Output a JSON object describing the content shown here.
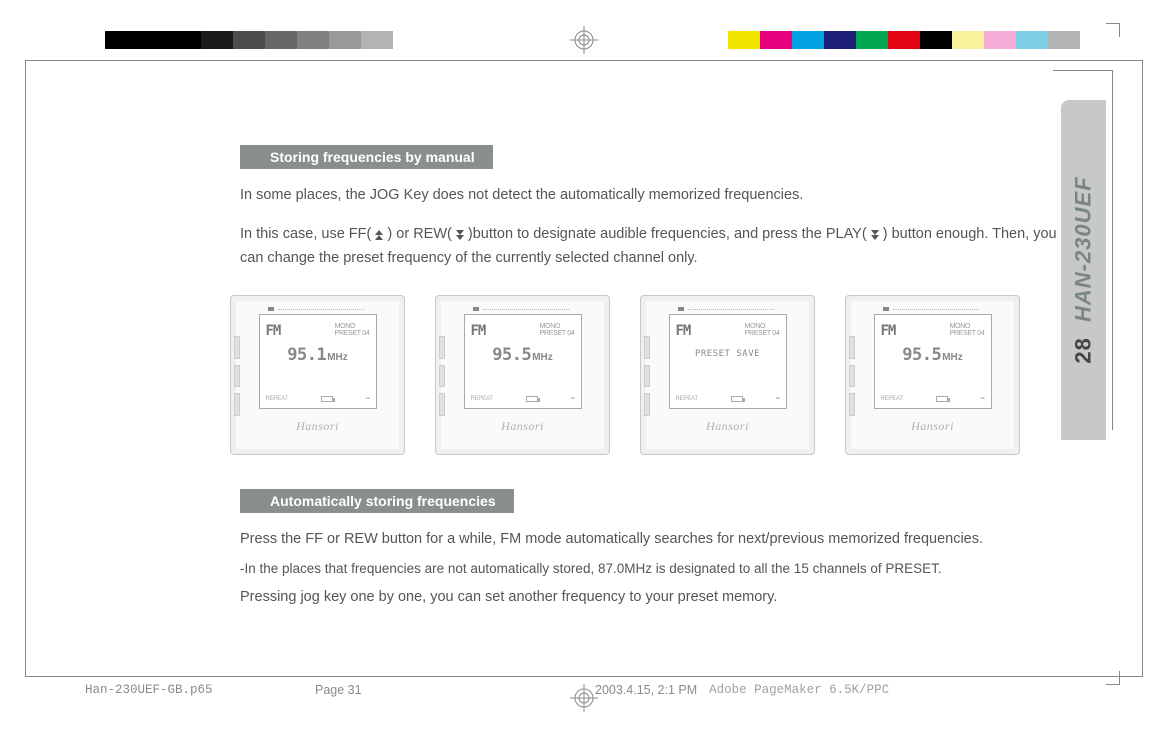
{
  "colorbar_left": [
    "#000000",
    "#000000",
    "#000000",
    "#1a1a1a",
    "#4d4d4d",
    "#666666",
    "#808080",
    "#999999",
    "#b3b3b3",
    "#ffffff"
  ],
  "colorbar_right": [
    "#f2e600",
    "#e6007e",
    "#00a0e1",
    "#1d1d7a",
    "#00a651",
    "#e30613",
    "#000000",
    "#f9f29b",
    "#f5aed8",
    "#7ecfe8",
    "#b3b3b3"
  ],
  "side_tab": {
    "page_number": "28",
    "model": "HAN-230UEF"
  },
  "section1": {
    "heading": "Storing frequencies by manual",
    "p1": "In some places, the JOG Key does not detect the automatically memorized frequencies.",
    "p2a": "In this case, use FF( ",
    "p2b": " ) or REW( ",
    "p2c": " )button to designate audible frequencies, and press the PLAY( ",
    "p2d": " ) button enough. Then, you can change the preset frequency of the currently selected channel only."
  },
  "devices": [
    {
      "fm": "FM",
      "preset_top": "MONO",
      "preset": "PRESET 04",
      "freq": "95.1",
      "unit": "MHz",
      "save": null,
      "footer_l": "REPEAT",
      "brand": "Hansori"
    },
    {
      "fm": "FM",
      "preset_top": "MONO",
      "preset": "PRESET 04",
      "freq": "95.5",
      "unit": "MHz",
      "save": null,
      "footer_l": "REPEAT",
      "brand": "Hansori"
    },
    {
      "fm": "FM",
      "preset_top": "MONO",
      "preset": "PRESET 04",
      "freq": null,
      "unit": null,
      "save": "PRESET  SAVE",
      "footer_l": "REPEAT",
      "brand": "Hansori"
    },
    {
      "fm": "FM",
      "preset_top": "MONO",
      "preset": "PRESET 04",
      "freq": "95.5",
      "unit": "MHz",
      "save": null,
      "footer_l": "REPEAT",
      "brand": "Hansori"
    }
  ],
  "section2": {
    "heading": "Automatically storing frequencies",
    "p1": "Press the FF or REW button for a while, FM mode automatically searches for next/previous memorized frequencies.",
    "p2": "-In the places that frequencies are not automatically stored, 87.0MHz is designated to all the 15 channels of PRESET.",
    "p3": "Pressing jog key one by one, you can set another frequency to your preset memory."
  },
  "footer": {
    "filename": "Han-230UEF-GB.p65",
    "page": "Page 31",
    "datetime": "2003.4.15, 2:1 PM",
    "app": "Adobe PageMaker 6.5K/PPC"
  }
}
